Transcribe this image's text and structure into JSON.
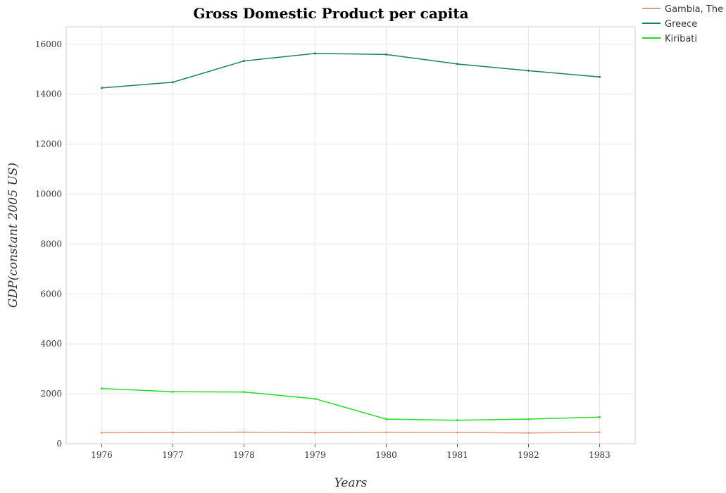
{
  "chart_data": {
    "type": "line",
    "title": "Gross Domestic Product per capita",
    "xlabel": "Years",
    "ylabel": "GDP(constant 2005 US)",
    "categories": [
      "1976",
      "1977",
      "1978",
      "1979",
      "1980",
      "1981",
      "1982",
      "1983"
    ],
    "ylim": [
      0,
      16700
    ],
    "yticks": [
      0,
      2000,
      4000,
      6000,
      8000,
      10000,
      12000,
      14000,
      16000
    ],
    "grid": true,
    "legend_position": "top-right",
    "series": [
      {
        "name": "Gambia, The",
        "color": "#e8987e",
        "values": [
          440,
          445,
          460,
          440,
          455,
          450,
          430,
          460
        ]
      },
      {
        "name": "Greece",
        "color": "#1a7f6e",
        "values": [
          14250,
          14480,
          15330,
          15630,
          15590,
          15210,
          14940,
          14690
        ]
      },
      {
        "name": "Kiribati",
        "color": "#22dd22",
        "values": [
          2210,
          2080,
          2070,
          1800,
          985,
          940,
          985,
          1065
        ]
      }
    ]
  }
}
